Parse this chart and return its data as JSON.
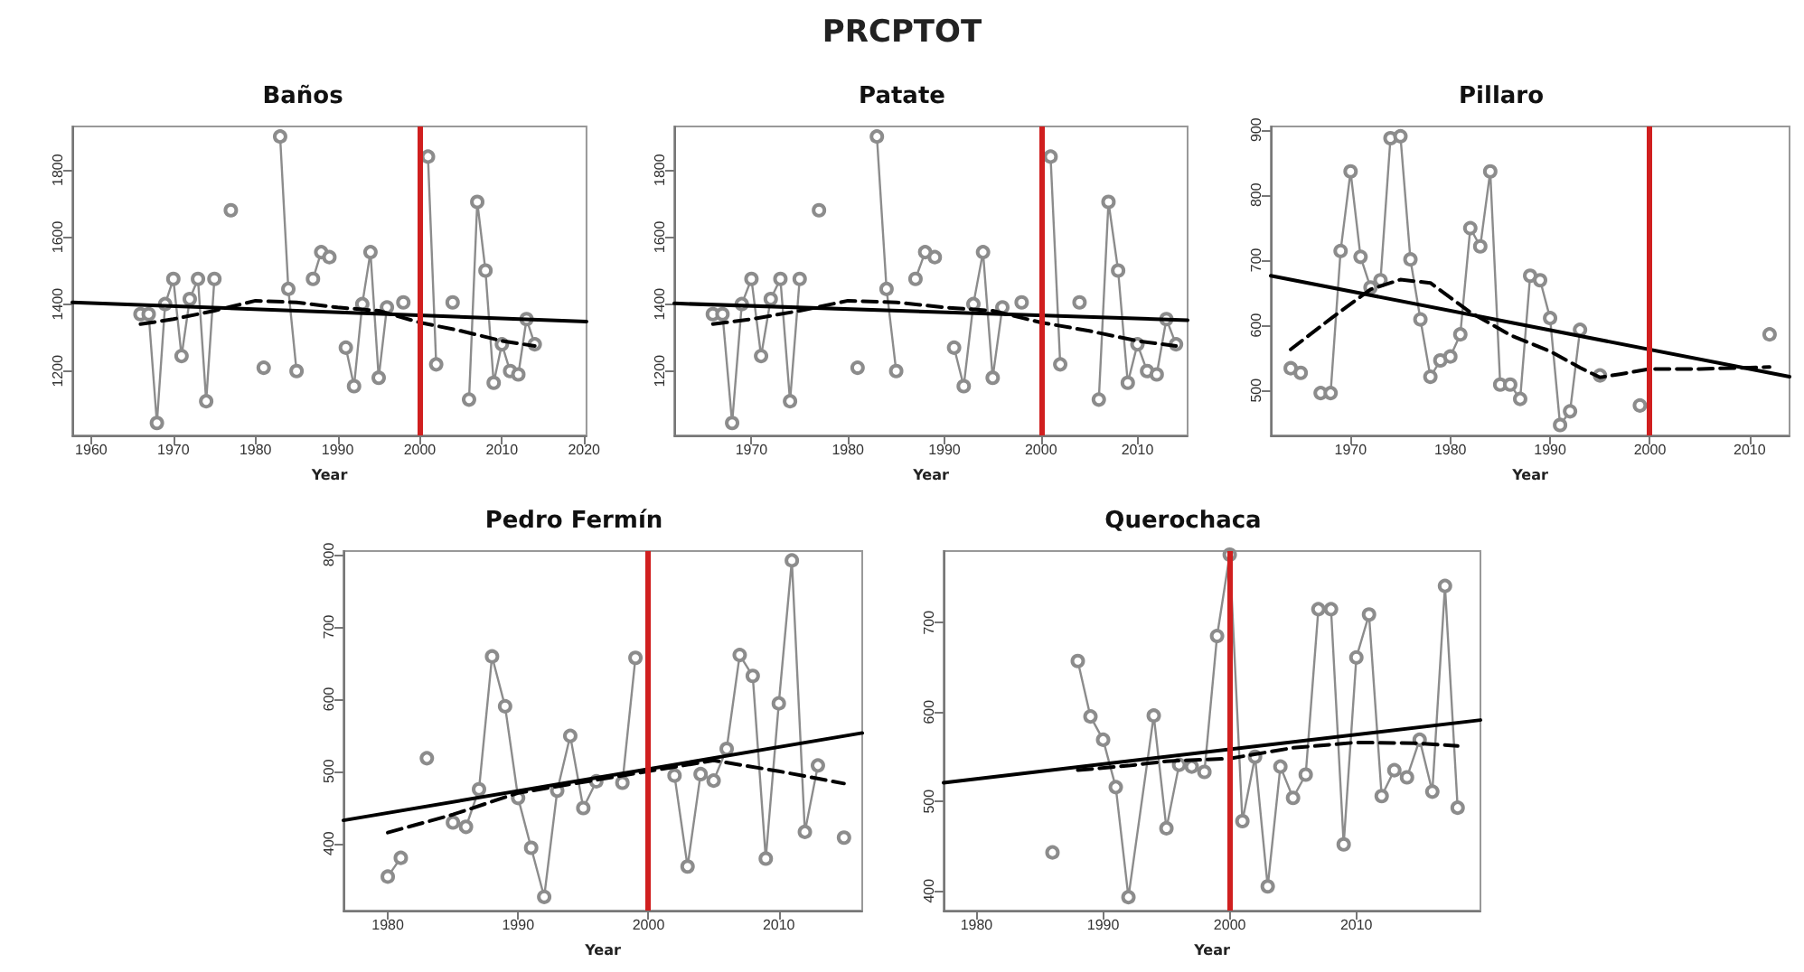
{
  "chart_data": [
    {
      "type": "other",
      "title": "PRCPTOT"
    },
    {
      "type": "line",
      "title": "Baños",
      "xlabel": "Year",
      "xlim": [
        1957.7,
        2020.3
      ],
      "xticks": [
        1960,
        1970,
        1980,
        1990,
        2000,
        2010,
        2020
      ],
      "ylim": [
        1008,
        1930
      ],
      "yticks": [
        1200,
        1400,
        1600,
        1800
      ],
      "grid": false,
      "ref_lines": [
        {
          "axis": "x",
          "value": 2000,
          "color": "#d01f1f"
        }
      ],
      "series": [
        {
          "color": "#8c8c8c",
          "marker": "circle",
          "x": [
            1966,
            1967,
            1968,
            1969,
            1970,
            1971,
            1972,
            1973,
            1974,
            1975,
            1976,
            1977,
            1978,
            1981,
            1982,
            1983,
            1984,
            1985,
            1986,
            1987,
            1988,
            1989,
            1990,
            1991,
            1992,
            1993,
            1994,
            1995,
            1996,
            1997,
            1998,
            1999,
            2001,
            2002,
            2003,
            2004,
            2005,
            2006,
            2007,
            2008,
            2009,
            2010,
            2011,
            2012,
            2013,
            2014
          ],
          "values": [
            1370,
            1370,
            1045,
            1400,
            1475,
            1245,
            1415,
            1475,
            1110,
            1475,
            null,
            1680,
            null,
            1210,
            null,
            1900,
            1445,
            1200,
            null,
            1475,
            1555,
            1540,
            null,
            1270,
            1155,
            1400,
            1555,
            1180,
            1390,
            null,
            1405,
            null,
            1840,
            1220,
            null,
            1405,
            null,
            1115,
            1705,
            1500,
            1165,
            1280,
            1200,
            1190,
            1355,
            1280
          ]
        },
        {
          "color": "#000000",
          "marker": "none",
          "x": [
            1957.7,
            2020.3
          ],
          "values": [
            1405,
            1348
          ]
        },
        {
          "color": "#000000",
          "marker": "none",
          "line_style": "dashed",
          "x": [
            1966,
            1970,
            1975,
            1980,
            1985,
            1990,
            1995,
            2000,
            2005,
            2010,
            2014
          ],
          "values": [
            1340,
            1355,
            1380,
            1410,
            1405,
            1390,
            1380,
            1345,
            1320,
            1290,
            1275
          ]
        }
      ]
    },
    {
      "type": "line",
      "title": "Patate",
      "xlabel": "Year",
      "xlim": [
        1962,
        2015.2
      ],
      "xticks": [
        1970,
        1980,
        1990,
        2000,
        2010
      ],
      "ylim": [
        1008,
        1930
      ],
      "yticks": [
        1200,
        1400,
        1600,
        1800
      ],
      "grid": false,
      "ref_lines": [
        {
          "axis": "x",
          "value": 2000,
          "color": "#d01f1f"
        }
      ],
      "series": [
        {
          "color": "#8c8c8c",
          "marker": "circle",
          "x": [
            1966,
            1967,
            1968,
            1969,
            1970,
            1971,
            1972,
            1973,
            1974,
            1975,
            1976,
            1977,
            1978,
            1981,
            1982,
            1983,
            1984,
            1985,
            1986,
            1987,
            1988,
            1989,
            1990,
            1991,
            1992,
            1993,
            1994,
            1995,
            1996,
            1997,
            1998,
            1999,
            2001,
            2002,
            2003,
            2004,
            2005,
            2006,
            2007,
            2008,
            2009,
            2010,
            2011,
            2012,
            2013,
            2014
          ],
          "values": [
            1370,
            1370,
            1045,
            1400,
            1475,
            1245,
            1415,
            1475,
            1110,
            1475,
            null,
            1680,
            null,
            1210,
            null,
            1900,
            1445,
            1200,
            null,
            1475,
            1555,
            1540,
            null,
            1270,
            1155,
            1400,
            1555,
            1180,
            1390,
            null,
            1405,
            null,
            1840,
            1220,
            null,
            1405,
            null,
            1115,
            1705,
            1500,
            1165,
            1280,
            1200,
            1190,
            1355,
            1280
          ]
        },
        {
          "color": "#000000",
          "marker": "none",
          "x": [
            1962,
            2015.2
          ],
          "values": [
            1402,
            1352
          ]
        },
        {
          "color": "#000000",
          "marker": "none",
          "line_style": "dashed",
          "x": [
            1966,
            1970,
            1975,
            1980,
            1985,
            1990,
            1995,
            2000,
            2005,
            2010,
            2014
          ],
          "values": [
            1340,
            1355,
            1380,
            1410,
            1405,
            1390,
            1380,
            1345,
            1320,
            1290,
            1275
          ]
        }
      ]
    },
    {
      "type": "line",
      "title": "Pillaro",
      "xlabel": "Year",
      "xlim": [
        1962,
        2014
      ],
      "xticks": [
        1970,
        1980,
        1990,
        2000,
        2010
      ],
      "ylim": [
        431,
        905
      ],
      "yticks": [
        500,
        600,
        700,
        800,
        900
      ],
      "grid": false,
      "ref_lines": [
        {
          "axis": "x",
          "value": 2000,
          "color": "#d01f1f"
        }
      ],
      "series": [
        {
          "color": "#8c8c8c",
          "marker": "circle",
          "x": [
            1964,
            1965,
            1966,
            1967,
            1968,
            1969,
            1970,
            1971,
            1972,
            1973,
            1974,
            1975,
            1976,
            1977,
            1978,
            1979,
            1980,
            1981,
            1982,
            1983,
            1984,
            1985,
            1986,
            1987,
            1988,
            1989,
            1990,
            1991,
            1992,
            1993,
            1994,
            1995,
            1996,
            1999,
            2000,
            2012
          ],
          "values": [
            534,
            527,
            null,
            496,
            496,
            714,
            836,
            705,
            658,
            669,
            887,
            890,
            701,
            609,
            521,
            546,
            552,
            586,
            749,
            721,
            836,
            509,
            509,
            487,
            676,
            669,
            611,
            447,
            468,
            593,
            null,
            523,
            null,
            477,
            null,
            586
          ]
        },
        {
          "color": "#000000",
          "marker": "none",
          "x": [
            1962,
            2014
          ],
          "values": [
            676,
            521
          ]
        },
        {
          "color": "#000000",
          "marker": "none",
          "line_style": "dashed",
          "x": [
            1964,
            1968,
            1972,
            1975,
            1978,
            1982,
            1986,
            1990,
            1993,
            1995,
            1997,
            2000,
            2005,
            2010,
            2012
          ],
          "values": [
            563,
            610,
            655,
            670,
            665,
            620,
            585,
            560,
            535,
            520,
            525,
            533,
            533,
            535,
            536
          ]
        }
      ]
    },
    {
      "type": "line",
      "title": "Pedro Fermín",
      "xlabel": "Year",
      "xlim": [
        1976.6,
        2016.4
      ],
      "xticks": [
        1980,
        1990,
        2000,
        2010
      ],
      "ylim": [
        307,
        805
      ],
      "yticks": [
        400,
        500,
        600,
        700,
        800
      ],
      "grid": false,
      "ref_lines": [
        {
          "axis": "x",
          "value": 2000,
          "color": "#d01f1f"
        }
      ],
      "series": [
        {
          "color": "#8c8c8c",
          "marker": "circle",
          "x": [
            1980,
            1981,
            1982,
            1983,
            1984,
            1985,
            1986,
            1987,
            1988,
            1989,
            1990,
            1991,
            1992,
            1993,
            1994,
            1995,
            1996,
            1997,
            1998,
            1999,
            2000,
            2002,
            2003,
            2004,
            2005,
            2006,
            2007,
            2008,
            2009,
            2010,
            2011,
            2012,
            2013,
            2014,
            2015
          ],
          "values": [
            354,
            380,
            null,
            518,
            null,
            429,
            423,
            475,
            659,
            590,
            463,
            394,
            326,
            473,
            549,
            449,
            486,
            null,
            484,
            657,
            null,
            494,
            368,
            496,
            487,
            531,
            661,
            632,
            379,
            594,
            792,
            416,
            508,
            null,
            408
          ]
        },
        {
          "color": "#000000",
          "marker": "none",
          "x": [
            1976.6,
            2016.4
          ],
          "values": [
            432,
            553
          ]
        },
        {
          "color": "#000000",
          "marker": "none",
          "line_style": "dashed",
          "x": [
            1980,
            1985,
            1990,
            1995,
            2000,
            2005,
            2010,
            2015
          ],
          "values": [
            415,
            440,
            470,
            485,
            500,
            515,
            500,
            483
          ]
        }
      ]
    },
    {
      "type": "line",
      "title": "Querochaca",
      "xlabel": "Year",
      "xlim": [
        1977.4,
        2019.8
      ],
      "xticks": [
        1980,
        1990,
        2000,
        2010
      ],
      "ylim": [
        378,
        780
      ],
      "yticks": [
        400,
        500,
        600,
        700
      ],
      "grid": false,
      "ref_lines": [
        {
          "axis": "x",
          "value": 2000,
          "color": "#d01f1f"
        }
      ],
      "series": [
        {
          "color": "#8c8c8c",
          "marker": "circle",
          "x": [
            1986,
            1987,
            1988,
            1989,
            1990,
            1991,
            1992,
            1994,
            1995,
            1996,
            1997,
            1998,
            1999,
            2000,
            2001,
            2002,
            2003,
            2004,
            2005,
            2006,
            2007,
            2008,
            2009,
            2010,
            2011,
            2012,
            2013,
            2014,
            2015,
            2016,
            2017,
            2018
          ],
          "values": [
            443,
            null,
            657,
            595,
            569,
            516,
            393,
            596,
            470,
            541,
            539,
            533,
            685,
            776,
            478,
            550,
            405,
            539,
            504,
            530,
            715,
            715,
            452,
            661,
            709,
            506,
            535,
            527,
            569,
            511,
            741,
            493
          ]
        },
        {
          "color": "#000000",
          "marker": "none",
          "x": [
            1977.4,
            2019.8
          ],
          "values": [
            521,
            591
          ]
        },
        {
          "color": "#000000",
          "marker": "none",
          "line_style": "dashed",
          "x": [
            1988,
            1992,
            1995,
            2000,
            2005,
            2010,
            2015,
            2018
          ],
          "values": [
            535,
            540,
            545,
            548,
            560,
            566,
            565,
            562
          ]
        }
      ]
    }
  ]
}
